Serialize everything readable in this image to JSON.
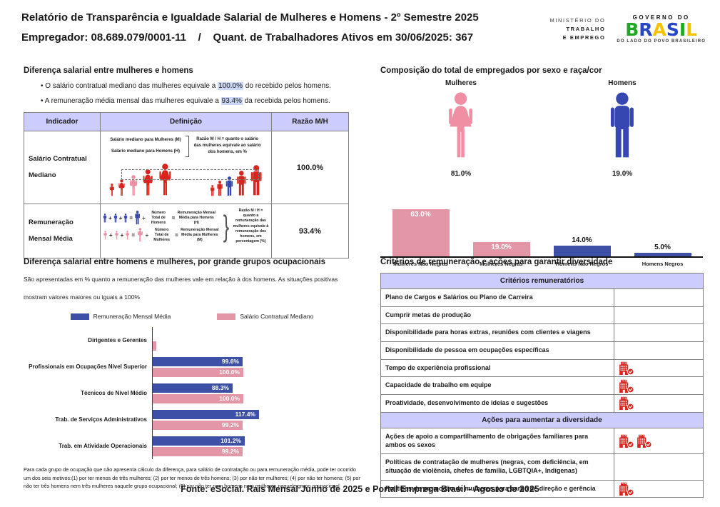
{
  "colors": {
    "blue": "#3E50A5",
    "pink": "#E296A6",
    "pink_icon": "#F08EA4",
    "blue_icon": "#3647B2",
    "red": "#D7251D",
    "lavender": "#CCCCFF",
    "highlight": "#CCD8F8",
    "border": "#808080"
  },
  "header": {
    "title": "Relatório de Transparência e Igualdade Salarial de Mulheres e Homens - 2º Semestre 2025",
    "subtitle": "Empregador: 08.689.079/0001-11    /    Quant. de Trabalhadores Ativos em 30/06/2025: 367",
    "ministry_logo": {
      "line1": "MINISTÉRIO DO",
      "line2": "TRABALHO",
      "line3": "E EMPREGO"
    },
    "gov_logo": {
      "top": "GOVERNO DO",
      "brand": "BRASIL",
      "brand_colors": [
        "#1FA824",
        "#2746C7",
        "#F5C400",
        "#2746C7",
        "#1FA824",
        "#F5C400"
      ],
      "bottom": "DO LADO DO POVO BRASILEIRO"
    }
  },
  "salary_diff": {
    "title": "Diferença salarial entre mulheres e homens",
    "bullets": [
      {
        "pre": "O salário contratual mediano das mulheres equivale a ",
        "value": "100.0%",
        "post": " do recebido pelos homens."
      },
      {
        "pre": "A remuneração média mensal das mulheres equivale a ",
        "value": "93.4%",
        "post": " da recebida pelos homens."
      }
    ],
    "table": {
      "headers": [
        "Indicador",
        "Definição",
        "Razão M/H"
      ],
      "rows": [
        {
          "indicator": "Salário Contratual Mediano",
          "ratio": "100.0%",
          "diagram": {
            "label_women": "Salário mediano para Mulheres (M)",
            "label_men": "Salário mediano para Homens (H)",
            "note": "Razão M / H = quanto o salário das mulheres equivale ao salário dos homens, em %",
            "figures_women": {
              "heights": [
                18,
                24,
                30,
                38,
                46
              ],
              "highlight_index": 2
            },
            "figures_men": {
              "heights": [
                16,
                22,
                28,
                36,
                44
              ],
              "highlight_index": 2
            }
          }
        },
        {
          "indicator": "Remuneração Mensal Média",
          "ratio": "93.4%",
          "diagram": {
            "men_divisor": "Número Total de Homens",
            "men_result": "Remuneração Mensal Média para Homens (H)",
            "women_divisor": "Número Total de Mulheres",
            "women_result": "Remuneração Mensal Média para Mulheres (M)",
            "note": "Razão M / H = quanto a remuneração das mulheres equivale à remuneração dos homens, em porcentagem (%)"
          }
        }
      ]
    }
  },
  "criteria": {
    "title": "Critérios de remuneração e ações para garantir diversidade",
    "sections": [
      {
        "header": "Critérios remuneratórios",
        "rows": [
          {
            "label": "Plano de Cargos e Salários ou Plano de Carreira",
            "icons": 0
          },
          {
            "label": "Cumprir metas de produção",
            "icons": 0
          },
          {
            "label": "Disponibilidade para horas extras, reuniões com clientes e viagens",
            "icons": 0
          },
          {
            "label": "Disponibilidade de pessoa em ocupações específicas",
            "icons": 0
          },
          {
            "label": "Tempo de experiência profissional",
            "icons": 1
          },
          {
            "label": "Capacidade de trabalho em equipe",
            "icons": 1
          },
          {
            "label": "Proatividade, desenvolvimento de ideias e sugestões",
            "icons": 1
          }
        ]
      },
      {
        "header": "Ações para aumentar a diversidade",
        "rows": [
          {
            "label": "Ações de apoio a compartilhamento de obrigações familiares para ambos os sexos",
            "icons": 2
          },
          {
            "label": "Políticas de contratação de mulheres (negras, com deficiência, em situação de violência, chefes de família, LGBTQIA+, Indígenas)",
            "icons": 0
          },
          {
            "label": "Políticas de promoção de mulheres para cargo de direção e gerência",
            "icons": 1
          }
        ]
      }
    ]
  },
  "chart_data": [
    {
      "id": "composition",
      "type": "bar",
      "title": "Composição do total de empregados por sexo e raça/cor",
      "categories": [
        "Mulheres Não Negras",
        "Mulheres Negras",
        "Homens Não Negros",
        "Homens Negros"
      ],
      "values": [
        63.0,
        19.0,
        14.0,
        5.0
      ],
      "value_labels": [
        "63.0%",
        "19.0%",
        "14.0%",
        "5.0%"
      ],
      "bar_colors": [
        "pink",
        "pink",
        "blue",
        "blue"
      ],
      "label_inside": [
        true,
        true,
        false,
        false
      ],
      "ylim": [
        0,
        70
      ],
      "grid": false,
      "totals": {
        "women_label": "Mulheres",
        "women_value": "81.0%",
        "men_label": "Homens",
        "men_value": "19.0%"
      }
    },
    {
      "id": "occupational",
      "type": "bar-horizontal-grouped",
      "title": "Diferença salarial entre homens e mulheres, por grande grupos ocupacionais",
      "subtitle": "São apresentadas em % quanto a remuneração das mulheres vale em relação à dos homens. As situações positivas mostram valores maiores ou iguais a 100%",
      "categories": [
        "Dirigentes e Gerentes",
        "Profissionais em Ocupações Nível Superior",
        "Técnicos de Nível Médio",
        "Trab. de Serviços Administrativos",
        "Trab. em Atividade Operacionais"
      ],
      "series": [
        {
          "name": "Remuneração Mensal Média",
          "color": "blue",
          "values": [
            null,
            99.6,
            88.3,
            117.4,
            101.2
          ]
        },
        {
          "name": "Salário Contratual Mediano",
          "color": "pink",
          "values": [
            null,
            100.0,
            100.0,
            99.2,
            99.2
          ]
        }
      ],
      "xlim": [
        0,
        120
      ],
      "grid": false,
      "legend_position": "top",
      "footnote": "Para cada grupo de ocupação que não apresenta cálculo da diferença, para salário de contratação ou para remuneração média, pode ter ocorrido um dos seis motivos:(1) por ter menos de três mulheres; (2) por ter menos de três homens; (3) por não ter mulheres; (4) por não ter homens; (5) por não ter três homens nem três mulheres naquele grupo ocupacional; (6) por não ter nem homens nem mulheres naquele grupo ocupacional"
    }
  ],
  "footer": {
    "source": "Fonte: eSocial. Rais Mensal Junho de 2025 e Portal Emprega Brasil - Agosto de 2025"
  }
}
